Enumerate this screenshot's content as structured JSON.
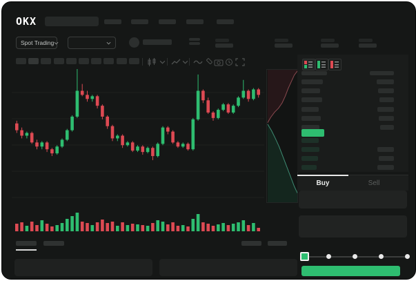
{
  "app": {
    "logo_text": "OKX"
  },
  "colors": {
    "up_green": "#2ebd70",
    "down_red": "#dd4a53",
    "grid": "#1e201f",
    "depth_ask_fill": "#261719",
    "depth_ask_line": "#8b4a50",
    "depth_bid_fill": "#14261e",
    "depth_bid_line": "#3e8b72"
  },
  "header": {
    "market_selector_label": "Spot Trading",
    "nav_placeholder_count": 5,
    "ticker_stat_count": 4,
    "icons": [
      "chevron-down-icon",
      "chevron-down-icon",
      "token-avatar"
    ]
  },
  "toolbar": {
    "timeframe_placeholder_count": 10,
    "icons": [
      "candle-type-icon",
      "chevron-down-icon",
      "line-chart-icon",
      "chevron-down-icon",
      "indicator-wave-icon",
      "draw-pencil-icon",
      "camera-icon",
      "clock-icon",
      "fullscreen-icon"
    ]
  },
  "order_book": {
    "view_mode_icons": [
      "book-combined-icon",
      "book-bids-icon",
      "book-asks-icon"
    ],
    "active_view_mode": 0,
    "ask_rows": [
      [
        0.78,
        0.62
      ],
      [
        0.68,
        0.58
      ],
      [
        0.75,
        0.52
      ],
      [
        0.62,
        0.6
      ],
      [
        0.7,
        0.55
      ],
      [
        0.66,
        0.5
      ]
    ],
    "bid_rows": [
      [
        0.62,
        0.0
      ],
      [
        0.66,
        0.6
      ],
      [
        0.6,
        0.55
      ],
      [
        0.56,
        0.6
      ]
    ],
    "last_price_direction": "up"
  },
  "trade_panel": {
    "tabs": [
      {
        "label": "Buy",
        "active": true
      },
      {
        "label": "Sell",
        "active": false
      }
    ],
    "slider_stop_values": [
      0,
      25,
      50,
      75,
      100
    ],
    "slider_position_pct": 0,
    "submit_button_color": "#2ebd70"
  },
  "chart_data": {
    "type": "candlestick",
    "title": "",
    "xlabel": "",
    "ylabel": "",
    "price_scale": [
      0,
      100
    ],
    "grid": true,
    "candles": [
      [
        59,
        61,
        52,
        54
      ],
      [
        54,
        56,
        48,
        50
      ],
      [
        50,
        53,
        48,
        52
      ],
      [
        52,
        53,
        44,
        45
      ],
      [
        45,
        47,
        40,
        42
      ],
      [
        42,
        46,
        40,
        45
      ],
      [
        45,
        46,
        38,
        40
      ],
      [
        40,
        41,
        35,
        37
      ],
      [
        37,
        43,
        36,
        42
      ],
      [
        42,
        48,
        41,
        47
      ],
      [
        47,
        55,
        46,
        54
      ],
      [
        54,
        65,
        53,
        64
      ],
      [
        64,
        99,
        63,
        83
      ],
      [
        83,
        88,
        79,
        80
      ],
      [
        80,
        83,
        75,
        77
      ],
      [
        77,
        80,
        75,
        79
      ],
      [
        79,
        80,
        70,
        72
      ],
      [
        72,
        73,
        62,
        64
      ],
      [
        64,
        65,
        55,
        57
      ],
      [
        57,
        58,
        46,
        48
      ],
      [
        48,
        51,
        46,
        50
      ],
      [
        50,
        51,
        41,
        43
      ],
      [
        43,
        46,
        42,
        45
      ],
      [
        45,
        46,
        38,
        39
      ],
      [
        39,
        43,
        38,
        42
      ],
      [
        42,
        43,
        36,
        38
      ],
      [
        38,
        42,
        37,
        41
      ],
      [
        41,
        42,
        32,
        35
      ],
      [
        35,
        45,
        34,
        44
      ],
      [
        44,
        57,
        43,
        56
      ],
      [
        56,
        57,
        51,
        53
      ],
      [
        53,
        54,
        44,
        45
      ],
      [
        45,
        46,
        41,
        42
      ],
      [
        42,
        45,
        41,
        44
      ],
      [
        44,
        45,
        39,
        40
      ],
      [
        40,
        63,
        39,
        62
      ],
      [
        62,
        95,
        61,
        83
      ],
      [
        83,
        84,
        74,
        76
      ],
      [
        76,
        78,
        66,
        67
      ],
      [
        67,
        68,
        61,
        63
      ],
      [
        63,
        70,
        62,
        69
      ],
      [
        69,
        74,
        68,
        73
      ],
      [
        73,
        74,
        66,
        67
      ],
      [
        67,
        73,
        66,
        72
      ],
      [
        72,
        79,
        71,
        78
      ],
      [
        78,
        91,
        77,
        83
      ],
      [
        83,
        84,
        75,
        77
      ],
      [
        77,
        85,
        76,
        84
      ],
      [
        84,
        85,
        78,
        80
      ]
    ],
    "volume": [
      11,
      13,
      8,
      14,
      9,
      16,
      11,
      7,
      9,
      12,
      18,
      22,
      27,
      14,
      12,
      9,
      13,
      17,
      12,
      14,
      8,
      13,
      9,
      11,
      10,
      9,
      8,
      12,
      16,
      14,
      10,
      13,
      8,
      9,
      7,
      18,
      25,
      13,
      11,
      8,
      10,
      12,
      9,
      11,
      13,
      16,
      9,
      12,
      5
    ],
    "depth": {
      "orientation": "vertical",
      "ask_curve": [
        [
          0.02,
          0.4
        ],
        [
          0.12,
          0.36
        ],
        [
          0.25,
          0.32
        ],
        [
          0.38,
          0.29
        ],
        [
          0.5,
          0.25
        ],
        [
          0.6,
          0.2
        ],
        [
          0.7,
          0.14
        ],
        [
          0.8,
          0.09
        ],
        [
          0.9,
          0.04
        ],
        [
          1.0,
          0.01
        ]
      ],
      "bid_curve": [
        [
          0.02,
          0.41
        ],
        [
          0.15,
          0.46
        ],
        [
          0.28,
          0.52
        ],
        [
          0.4,
          0.58
        ],
        [
          0.5,
          0.64
        ],
        [
          0.6,
          0.7
        ],
        [
          0.7,
          0.76
        ],
        [
          0.8,
          0.82
        ],
        [
          0.9,
          0.88
        ],
        [
          1.0,
          0.93
        ]
      ]
    }
  }
}
